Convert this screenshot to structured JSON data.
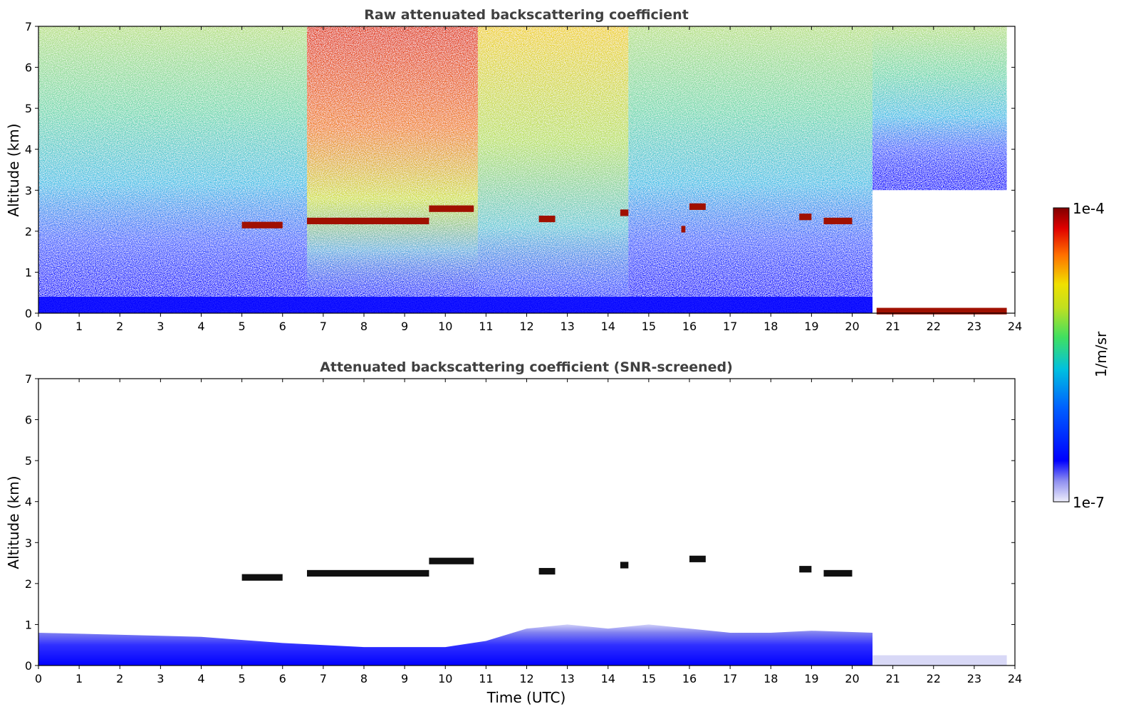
{
  "chart_data": [
    {
      "type": "heatmap",
      "title": "Raw attenuated backscattering coefficient",
      "xlabel": "",
      "ylabel": "Altitude (km)",
      "xlim": [
        0,
        24
      ],
      "ylim": [
        0,
        7
      ],
      "x_ticks": [
        0,
        1,
        2,
        3,
        4,
        5,
        6,
        7,
        8,
        9,
        10,
        11,
        12,
        13,
        14,
        15,
        16,
        17,
        18,
        19,
        20,
        21,
        22,
        23,
        24
      ],
      "y_ticks": [
        0,
        1,
        2,
        3,
        4,
        5,
        6,
        7
      ],
      "cloud_layers": [
        {
          "start": 5.0,
          "end": 6.0,
          "altitude": 2.15
        },
        {
          "start": 6.6,
          "end": 9.6,
          "altitude": 2.25
        },
        {
          "start": 9.6,
          "end": 10.7,
          "altitude": 2.55
        },
        {
          "start": 12.3,
          "end": 12.7,
          "altitude": 2.3
        },
        {
          "start": 14.3,
          "end": 14.5,
          "altitude": 2.45
        },
        {
          "start": 15.8,
          "end": 15.9,
          "altitude": 2.05
        },
        {
          "start": 16.0,
          "end": 16.4,
          "altitude": 2.6
        },
        {
          "start": 18.7,
          "end": 19.0,
          "altitude": 2.35
        },
        {
          "start": 19.3,
          "end": 20.0,
          "altitude": 2.25
        },
        {
          "start": 20.6,
          "end": 23.8,
          "altitude": 0.05
        }
      ]
    },
    {
      "type": "heatmap",
      "title": "Attenuated backscattering coefficient (SNR-screened)",
      "xlabel": "Time (UTC)",
      "ylabel": "Altitude (km)",
      "xlim": [
        0,
        24
      ],
      "ylim": [
        0,
        7
      ],
      "x_ticks": [
        0,
        1,
        2,
        3,
        4,
        5,
        6,
        7,
        8,
        9,
        10,
        11,
        12,
        13,
        14,
        15,
        16,
        17,
        18,
        19,
        20,
        21,
        22,
        23,
        24
      ],
      "y_ticks": [
        0,
        1,
        2,
        3,
        4,
        5,
        6,
        7
      ],
      "cloud_layers": [
        {
          "start": 5.0,
          "end": 6.0,
          "altitude": 2.15
        },
        {
          "start": 6.6,
          "end": 9.6,
          "altitude": 2.25
        },
        {
          "start": 9.6,
          "end": 10.7,
          "altitude": 2.55
        },
        {
          "start": 12.3,
          "end": 12.7,
          "altitude": 2.3
        },
        {
          "start": 14.3,
          "end": 14.5,
          "altitude": 2.45
        },
        {
          "start": 16.0,
          "end": 16.4,
          "altitude": 2.6
        },
        {
          "start": 18.7,
          "end": 19.0,
          "altitude": 2.35
        },
        {
          "start": 19.3,
          "end": 20.0,
          "altitude": 2.25
        }
      ]
    }
  ],
  "colorbar": {
    "label": "1/m/sr",
    "min_label": "1e-7",
    "max_label": "1e-4",
    "scale": "log",
    "colormap": [
      "#e8e8f8",
      "#0000ff",
      "#00a0ff",
      "#00e0c0",
      "#80e040",
      "#f0e000",
      "#ff8000",
      "#e00000",
      "#800000"
    ]
  }
}
